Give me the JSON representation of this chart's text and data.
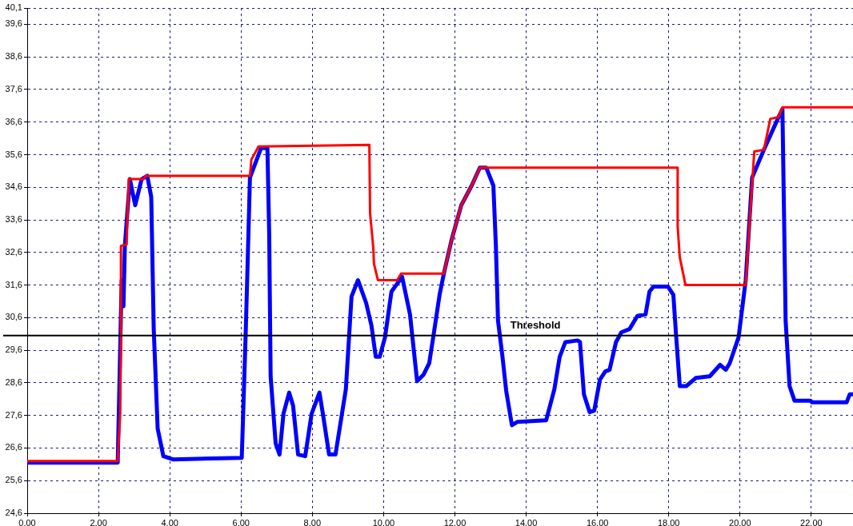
{
  "chart_data": {
    "type": "line",
    "xlim": [
      0,
      23.17
    ],
    "ylim": [
      24.6,
      40.1
    ],
    "xticks": [
      {
        "value": 0,
        "label": "0,00"
      },
      {
        "value": 2,
        "label": "2,00"
      },
      {
        "value": 4,
        "label": "4,00"
      },
      {
        "value": 6,
        "label": "6,00"
      },
      {
        "value": 8,
        "label": "8,00"
      },
      {
        "value": 10,
        "label": "10,00"
      },
      {
        "value": 12,
        "label": "12,00"
      },
      {
        "value": 14,
        "label": "14,00"
      },
      {
        "value": 16,
        "label": "16,00"
      },
      {
        "value": 18,
        "label": "18,00"
      },
      {
        "value": 20,
        "label": "20,00"
      },
      {
        "value": 22,
        "label": "22,00"
      }
    ],
    "yticks": [
      {
        "value": 24.6,
        "label": "24,6"
      },
      {
        "value": 25.6,
        "label": "25,6"
      },
      {
        "value": 26.6,
        "label": "26,6"
      },
      {
        "value": 27.6,
        "label": "27,6"
      },
      {
        "value": 28.6,
        "label": "28,6"
      },
      {
        "value": 29.6,
        "label": "29,6"
      },
      {
        "value": 30.6,
        "label": "30,6"
      },
      {
        "value": 31.6,
        "label": "31,6"
      },
      {
        "value": 32.6,
        "label": "32,6"
      },
      {
        "value": 33.6,
        "label": "33,6"
      },
      {
        "value": 34.6,
        "label": "34,6"
      },
      {
        "value": 35.6,
        "label": "35,6"
      },
      {
        "value": 36.6,
        "label": "36,6"
      },
      {
        "value": 37.6,
        "label": "37,6"
      },
      {
        "value": 38.6,
        "label": "38,6"
      },
      {
        "value": 39.6,
        "label": "39,6"
      },
      {
        "value": 40.1,
        "label": "40,1"
      }
    ],
    "grid": true,
    "line_style": "solid",
    "marker": "none",
    "ref_lines": [
      {
        "axis": "y",
        "value": 30.05,
        "label": "Threshold",
        "color": "#000000"
      }
    ],
    "series": [
      {
        "color": "#ff0000",
        "x": [
          0,
          2.54,
          2.61,
          2.63,
          2.63,
          2.79,
          2.81,
          2.85,
          3.26,
          3.33,
          6.25,
          6.29,
          6.49,
          9.6,
          9.62,
          9.71,
          9.73,
          9.84,
          10.38,
          10.49,
          11.69,
          11.91,
          12.18,
          12.47,
          12.7,
          12.88,
          18.25,
          18.25,
          18.31,
          18.47,
          20.16,
          20.29,
          20.4,
          20.67,
          20.85,
          21.08,
          21.19,
          23.17
        ],
        "values": [
          26.2,
          26.2,
          27.7,
          29.9,
          32.8,
          32.85,
          33.6,
          34.85,
          34.85,
          34.95,
          34.95,
          35.45,
          35.85,
          35.9,
          33.8,
          32.75,
          32.25,
          31.75,
          31.75,
          31.95,
          31.95,
          33.0,
          34.05,
          34.65,
          35.2,
          35.2,
          35.2,
          33.4,
          32.45,
          31.6,
          31.6,
          33.85,
          35.7,
          35.75,
          36.7,
          36.75,
          37.05,
          37.05
        ]
      },
      {
        "color": "#0000ff",
        "x": [
          0,
          2.54,
          2.65,
          2.7,
          2.74,
          2.88,
          3.03,
          3.21,
          3.37,
          3.48,
          3.55,
          3.66,
          3.82,
          4.09,
          6.02,
          6.13,
          6.25,
          6.56,
          6.74,
          6.79,
          6.83,
          6.97,
          7.08,
          7.19,
          7.35,
          7.46,
          7.6,
          7.8,
          7.98,
          8.2,
          8.31,
          8.47,
          8.65,
          8.94,
          9.1,
          9.28,
          9.51,
          9.66,
          9.78,
          9.89,
          10.04,
          10.22,
          10.52,
          10.74,
          10.94,
          11.12,
          11.28,
          11.42,
          11.57,
          11.69,
          11.91,
          12.18,
          12.47,
          12.7,
          12.88,
          13.08,
          13.15,
          13.21,
          13.33,
          13.44,
          13.6,
          13.75,
          14.56,
          14.79,
          14.94,
          15.1,
          15.44,
          15.51,
          15.62,
          15.78,
          15.91,
          16.07,
          16.22,
          16.34,
          16.52,
          16.67,
          16.9,
          17.12,
          17.35,
          17.46,
          17.57,
          17.98,
          18.13,
          18.2,
          18.31,
          18.49,
          18.76,
          19.15,
          19.44,
          19.6,
          19.71,
          19.96,
          20.16,
          20.34,
          20.67,
          21.06,
          21.19,
          21.28,
          21.39,
          21.53,
          21.98,
          22.02,
          22.99,
          23.08,
          23.17
        ],
        "values": [
          26.15,
          26.15,
          31.75,
          30.95,
          32.8,
          34.85,
          34.05,
          34.85,
          34.95,
          34.3,
          30.25,
          27.2,
          26.35,
          26.25,
          26.3,
          30.1,
          34.9,
          35.8,
          35.8,
          33.15,
          28.8,
          26.75,
          26.4,
          27.65,
          28.3,
          27.9,
          26.4,
          26.35,
          27.65,
          28.3,
          27.55,
          26.4,
          26.4,
          28.4,
          31.25,
          31.75,
          31.05,
          30.35,
          29.4,
          29.4,
          30.0,
          31.4,
          31.85,
          30.7,
          28.65,
          28.85,
          29.2,
          30.2,
          31.3,
          31.95,
          33.0,
          34.05,
          34.65,
          35.2,
          35.2,
          34.65,
          32.8,
          30.5,
          29.45,
          28.35,
          27.3,
          27.4,
          27.45,
          28.4,
          29.4,
          29.85,
          29.9,
          29.85,
          28.25,
          27.7,
          27.75,
          28.7,
          28.95,
          29.0,
          29.85,
          30.15,
          30.25,
          30.65,
          30.7,
          31.4,
          31.55,
          31.55,
          31.3,
          30.15,
          28.5,
          28.5,
          28.75,
          28.8,
          29.15,
          29.0,
          29.2,
          30.0,
          31.75,
          34.9,
          35.75,
          36.7,
          37.0,
          30.5,
          28.5,
          28.05,
          28.05,
          28.0,
          28.0,
          28.25,
          28.25
        ]
      }
    ]
  }
}
